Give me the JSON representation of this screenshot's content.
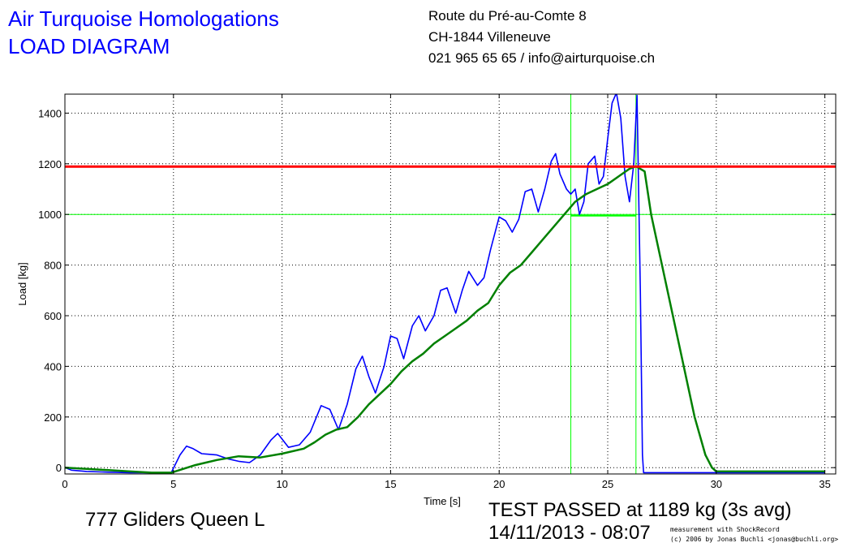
{
  "header": {
    "title_line1": "Air Turquoise Homologations",
    "title_line2": "LOAD DIAGRAM",
    "address_line1": "Route du Pré-au-Comte 8",
    "address_line2": "CH-1844 Villeneuve",
    "address_line3": "021 965 65 65 / info@airturquoise.ch"
  },
  "footer": {
    "glider": "777 Gliders Queen L",
    "result": "TEST PASSED at 1189 kg (3s avg)",
    "datetime": "14/11/2013 - 08:07",
    "credit_line1": "measurement with ShockRecord",
    "credit_line2": "(c) 2006 by Jonas Buchli <jonas@buchli.org>"
  },
  "chart_data": {
    "type": "line",
    "xlabel": "Time [s]",
    "ylabel": "Load [kg]",
    "xlim": [
      0,
      35.5
    ],
    "ylim": [
      -25,
      1475
    ],
    "xticks": [
      0,
      5,
      10,
      15,
      20,
      25,
      30,
      35
    ],
    "yticks": [
      0,
      200,
      400,
      600,
      800,
      1000,
      1200,
      1400
    ],
    "grid": true,
    "colors": {
      "raw": "#0000ff",
      "avg": "#008000",
      "limit": "#ff0000",
      "marker": "#00ff00"
    },
    "reference_lines": {
      "pass_load": 1189,
      "min_load": 1000,
      "window_start": 23.3,
      "window_end": 26.3,
      "window_min_level": 995
    },
    "series": [
      {
        "key": "raw",
        "x": [
          0,
          0.3,
          1,
          2,
          3,
          4,
          4.9,
          5.3,
          5.6,
          5.9,
          6.3,
          7,
          7.5,
          8,
          8.5,
          9,
          9.5,
          9.8,
          10.3,
          10.8,
          11.3,
          11.8,
          12.2,
          12.6,
          13,
          13.4,
          13.7,
          14,
          14.3,
          14.7,
          15,
          15.3,
          15.6,
          16,
          16.3,
          16.6,
          17,
          17.3,
          17.6,
          18,
          18.3,
          18.6,
          19,
          19.3,
          19.6,
          20,
          20.3,
          20.6,
          20.9,
          21.2,
          21.5,
          21.8,
          22.1,
          22.4,
          22.6,
          22.8,
          23.1,
          23.3,
          23.5,
          23.7,
          23.9,
          24.1,
          24.4,
          24.6,
          24.8,
          25.0,
          25.2,
          25.4,
          25.6,
          25.8,
          26.0,
          26.2,
          26.35,
          26.5,
          26.6,
          26.65,
          26.75,
          26.9,
          27.1,
          27.5,
          28,
          29,
          30,
          31,
          32,
          33,
          34,
          35
        ],
        "y": [
          0,
          -10,
          -15,
          -18,
          -20,
          -20,
          -20,
          50,
          85,
          75,
          55,
          50,
          35,
          25,
          20,
          50,
          110,
          135,
          80,
          90,
          140,
          245,
          230,
          150,
          250,
          390,
          440,
          360,
          295,
          400,
          520,
          510,
          430,
          560,
          600,
          540,
          600,
          700,
          710,
          610,
          700,
          775,
          720,
          750,
          860,
          990,
          975,
          930,
          980,
          1090,
          1100,
          1010,
          1100,
          1210,
          1240,
          1160,
          1100,
          1080,
          1100,
          1000,
          1050,
          1200,
          1230,
          1120,
          1150,
          1300,
          1440,
          1480,
          1380,
          1150,
          1050,
          1200,
          1470,
          700,
          50,
          -20,
          -20,
          -20,
          -20,
          -20,
          -20,
          -20,
          -20,
          -20,
          -20,
          -20,
          -20,
          -20
        ]
      },
      {
        "key": "avg",
        "x": [
          0,
          1,
          2,
          3,
          4,
          4.9,
          6,
          7,
          8,
          9,
          10,
          11,
          11.5,
          12,
          12.5,
          13,
          13.5,
          14,
          14.5,
          15,
          15.5,
          16,
          16.5,
          17,
          17.5,
          18,
          18.5,
          19,
          19.5,
          20,
          20.5,
          21,
          21.5,
          22,
          22.5,
          23,
          23.5,
          24,
          24.5,
          25,
          25.5,
          26,
          26.3,
          26.7,
          27,
          27.5,
          28,
          28.5,
          29,
          29.5,
          29.8,
          30,
          31,
          32,
          33,
          34,
          35
        ],
        "y": [
          0,
          -5,
          -10,
          -15,
          -20,
          -20,
          10,
          30,
          45,
          40,
          55,
          75,
          100,
          130,
          150,
          160,
          200,
          250,
          290,
          330,
          380,
          420,
          450,
          490,
          520,
          550,
          580,
          620,
          650,
          720,
          770,
          800,
          850,
          900,
          950,
          1000,
          1050,
          1080,
          1100,
          1120,
          1150,
          1180,
          1190,
          1170,
          1000,
          800,
          600,
          400,
          200,
          50,
          0,
          -15,
          -15,
          -15,
          -15,
          -15,
          -15
        ]
      }
    ]
  }
}
